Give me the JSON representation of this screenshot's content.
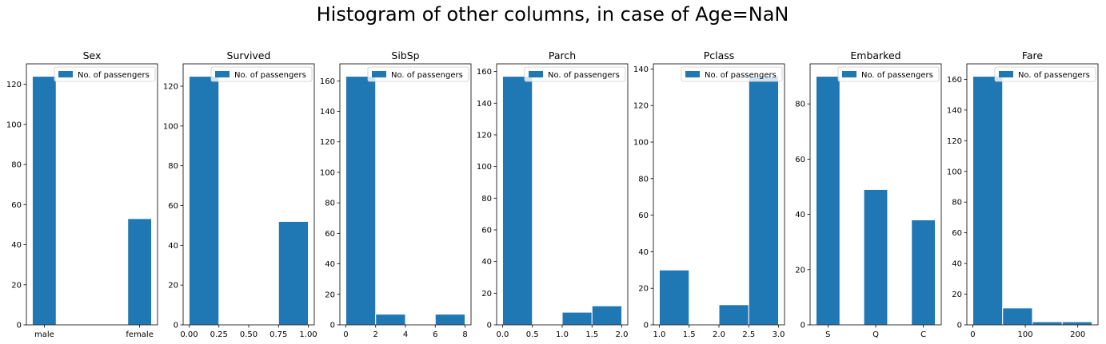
{
  "figure": {
    "suptitle": "Histogram of other columns, in case of Age=NaN",
    "bar_color": "#1f77b4",
    "legend_label": "No. of passengers"
  },
  "chart_data": [
    {
      "type": "bar",
      "title": "Sex",
      "xlabel": "",
      "ylabel": "",
      "bars": [
        {
          "x0": 0,
          "x1": 0.2,
          "y": 124
        },
        {
          "x0": 0.8,
          "x1": 1.0,
          "y": 53
        }
      ],
      "xlim": [
        -0.05,
        1.05
      ],
      "ylim": [
        0,
        130.2
      ],
      "xticks": [
        {
          "v": 0.1,
          "label": "male"
        },
        {
          "v": 0.9,
          "label": "female"
        }
      ],
      "yticks": [
        0,
        20,
        40,
        60,
        80,
        100,
        120
      ],
      "legend": {
        "position": "upper right",
        "entries": [
          "No. of passengers"
        ]
      }
    },
    {
      "type": "bar",
      "title": "Survived",
      "xlabel": "",
      "ylabel": "",
      "bars": [
        {
          "x0": 0,
          "x1": 0.25,
          "y": 125
        },
        {
          "x0": 0.75,
          "x1": 1.0,
          "y": 52
        }
      ],
      "xlim": [
        -0.05,
        1.05
      ],
      "ylim": [
        0,
        131.25
      ],
      "xticks": [
        {
          "v": 0,
          "label": "0.00"
        },
        {
          "v": 0.25,
          "label": "0.25"
        },
        {
          "v": 0.5,
          "label": "0.50"
        },
        {
          "v": 0.75,
          "label": "0.75"
        },
        {
          "v": 1.0,
          "label": "1.00"
        }
      ],
      "yticks": [
        0,
        20,
        40,
        60,
        80,
        100,
        120
      ],
      "legend": {
        "position": "upper right",
        "entries": [
          "No. of passengers"
        ]
      }
    },
    {
      "type": "bar",
      "title": "SibSp",
      "xlabel": "",
      "ylabel": "",
      "bars": [
        {
          "x0": 0,
          "x1": 2,
          "y": 163
        },
        {
          "x0": 2,
          "x1": 4,
          "y": 7
        },
        {
          "x0": 6,
          "x1": 8,
          "y": 7
        }
      ],
      "xlim": [
        -0.4,
        8.4
      ],
      "ylim": [
        0,
        171.15
      ],
      "xticks": [
        {
          "v": 0,
          "label": "0"
        },
        {
          "v": 2,
          "label": "2"
        },
        {
          "v": 4,
          "label": "4"
        },
        {
          "v": 6,
          "label": "6"
        },
        {
          "v": 8,
          "label": "8"
        }
      ],
      "yticks": [
        0,
        20,
        40,
        60,
        80,
        100,
        120,
        140,
        160
      ],
      "legend": {
        "position": "upper right",
        "entries": [
          "No. of passengers"
        ]
      }
    },
    {
      "type": "bar",
      "title": "Parch",
      "xlabel": "",
      "ylabel": "",
      "bars": [
        {
          "x0": 0,
          "x1": 0.5,
          "y": 157
        },
        {
          "x0": 1.0,
          "x1": 1.5,
          "y": 8
        },
        {
          "x0": 1.5,
          "x1": 2.0,
          "y": 12
        }
      ],
      "xlim": [
        -0.1,
        2.1
      ],
      "ylim": [
        0,
        164.85
      ],
      "xticks": [
        {
          "v": 0,
          "label": "0.0"
        },
        {
          "v": 0.5,
          "label": "0.5"
        },
        {
          "v": 1.0,
          "label": "1.0"
        },
        {
          "v": 1.5,
          "label": "1.5"
        },
        {
          "v": 2.0,
          "label": "2.0"
        }
      ],
      "yticks": [
        0,
        20,
        40,
        60,
        80,
        100,
        120,
        140,
        160
      ],
      "legend": {
        "position": "upper right",
        "entries": [
          "No. of passengers"
        ]
      }
    },
    {
      "type": "bar",
      "title": "Pclass",
      "xlabel": "",
      "ylabel": "",
      "bars": [
        {
          "x0": 1.0,
          "x1": 1.5,
          "y": 30
        },
        {
          "x0": 2.0,
          "x1": 2.5,
          "y": 11
        },
        {
          "x0": 2.5,
          "x1": 3.0,
          "y": 136
        }
      ],
      "xlim": [
        0.9,
        3.1
      ],
      "ylim": [
        0,
        142.8
      ],
      "xticks": [
        {
          "v": 1.0,
          "label": "1.0"
        },
        {
          "v": 1.5,
          "label": "1.5"
        },
        {
          "v": 2.0,
          "label": "2.0"
        },
        {
          "v": 2.5,
          "label": "2.5"
        },
        {
          "v": 3.0,
          "label": "3.0"
        }
      ],
      "yticks": [
        0,
        20,
        40,
        60,
        80,
        100,
        120,
        140
      ],
      "legend": {
        "position": "upper right",
        "entries": [
          "No. of passengers"
        ]
      }
    },
    {
      "type": "bar",
      "title": "Embarked",
      "xlabel": "",
      "ylabel": "",
      "bars": [
        {
          "x0": 0,
          "x1": 0.2,
          "y": 90
        },
        {
          "x0": 0.4,
          "x1": 0.6,
          "y": 49
        },
        {
          "x0": 0.8,
          "x1": 1.0,
          "y": 38
        }
      ],
      "xlim": [
        -0.05,
        1.05
      ],
      "ylim": [
        0,
        94.5
      ],
      "xticks": [
        {
          "v": 0.1,
          "label": "S"
        },
        {
          "v": 0.5,
          "label": "Q"
        },
        {
          "v": 0.9,
          "label": "C"
        }
      ],
      "yticks": [
        0,
        20,
        40,
        60,
        80
      ],
      "legend": {
        "position": "upper right",
        "entries": [
          "No. of passengers"
        ]
      }
    },
    {
      "type": "bar",
      "title": "Fare",
      "xlabel": "",
      "ylabel": "",
      "bars": [
        {
          "x0": 0,
          "x1": 56.8,
          "y": 162
        },
        {
          "x0": 56.8,
          "x1": 113.6,
          "y": 11
        },
        {
          "x0": 113.6,
          "x1": 170.4,
          "y": 2
        },
        {
          "x0": 170.4,
          "x1": 227.2,
          "y": 2
        }
      ],
      "xlim": [
        -11.4,
        238.6
      ],
      "ylim": [
        0,
        170.1
      ],
      "xticks": [
        {
          "v": 0,
          "label": "0"
        },
        {
          "v": 100,
          "label": "100"
        },
        {
          "v": 200,
          "label": "200"
        }
      ],
      "yticks": [
        0,
        20,
        40,
        60,
        80,
        100,
        120,
        140,
        160
      ],
      "legend": {
        "position": "upper right",
        "entries": [
          "No. of passengers"
        ]
      }
    }
  ]
}
